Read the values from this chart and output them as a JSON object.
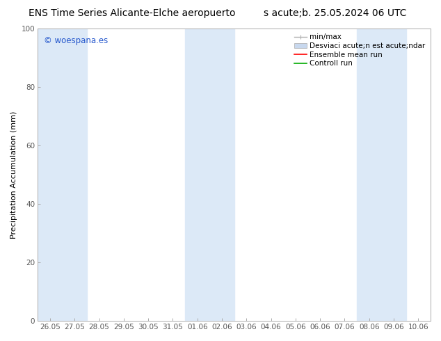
{
  "title_left": "ENS Time Series Alicante-Elche aeropuerto",
  "title_right": "s acute;b. 25.05.2024 06 UTC",
  "ylabel": "Precipitation Accumulation (mm)",
  "watermark": "© woespana.es",
  "ylim": [
    0,
    100
  ],
  "background_color": "#ffffff",
  "plot_bg_color": "#ffffff",
  "shaded_band_color": "#dce9f7",
  "x_tick_labels": [
    "26.05",
    "27.05",
    "28.05",
    "29.05",
    "30.05",
    "31.05",
    "01.06",
    "02.06",
    "03.06",
    "04.06",
    "05.06",
    "06.06",
    "07.06",
    "08.06",
    "09.06",
    "10.06"
  ],
  "x_tick_positions": [
    0,
    1,
    2,
    3,
    4,
    5,
    6,
    7,
    8,
    9,
    10,
    11,
    12,
    13,
    14,
    15
  ],
  "shaded_columns": [
    0,
    1,
    6,
    7,
    13,
    14
  ],
  "legend_entries": [
    {
      "label": "min/max",
      "color": "#b0b0b0",
      "type": "errorbar"
    },
    {
      "label": "Desviaci acute;n est acute;ndar",
      "color": "#c8d8ee",
      "type": "fill"
    },
    {
      "label": "Ensemble mean run",
      "color": "#ff0000",
      "type": "line"
    },
    {
      "label": "Controll run",
      "color": "#00aa00",
      "type": "line"
    }
  ],
  "title_fontsize": 10,
  "axis_fontsize": 8,
  "tick_fontsize": 7.5,
  "legend_fontsize": 7.5,
  "watermark_color": "#2255cc",
  "spine_color": "#aaaaaa",
  "tick_color": "#555555"
}
